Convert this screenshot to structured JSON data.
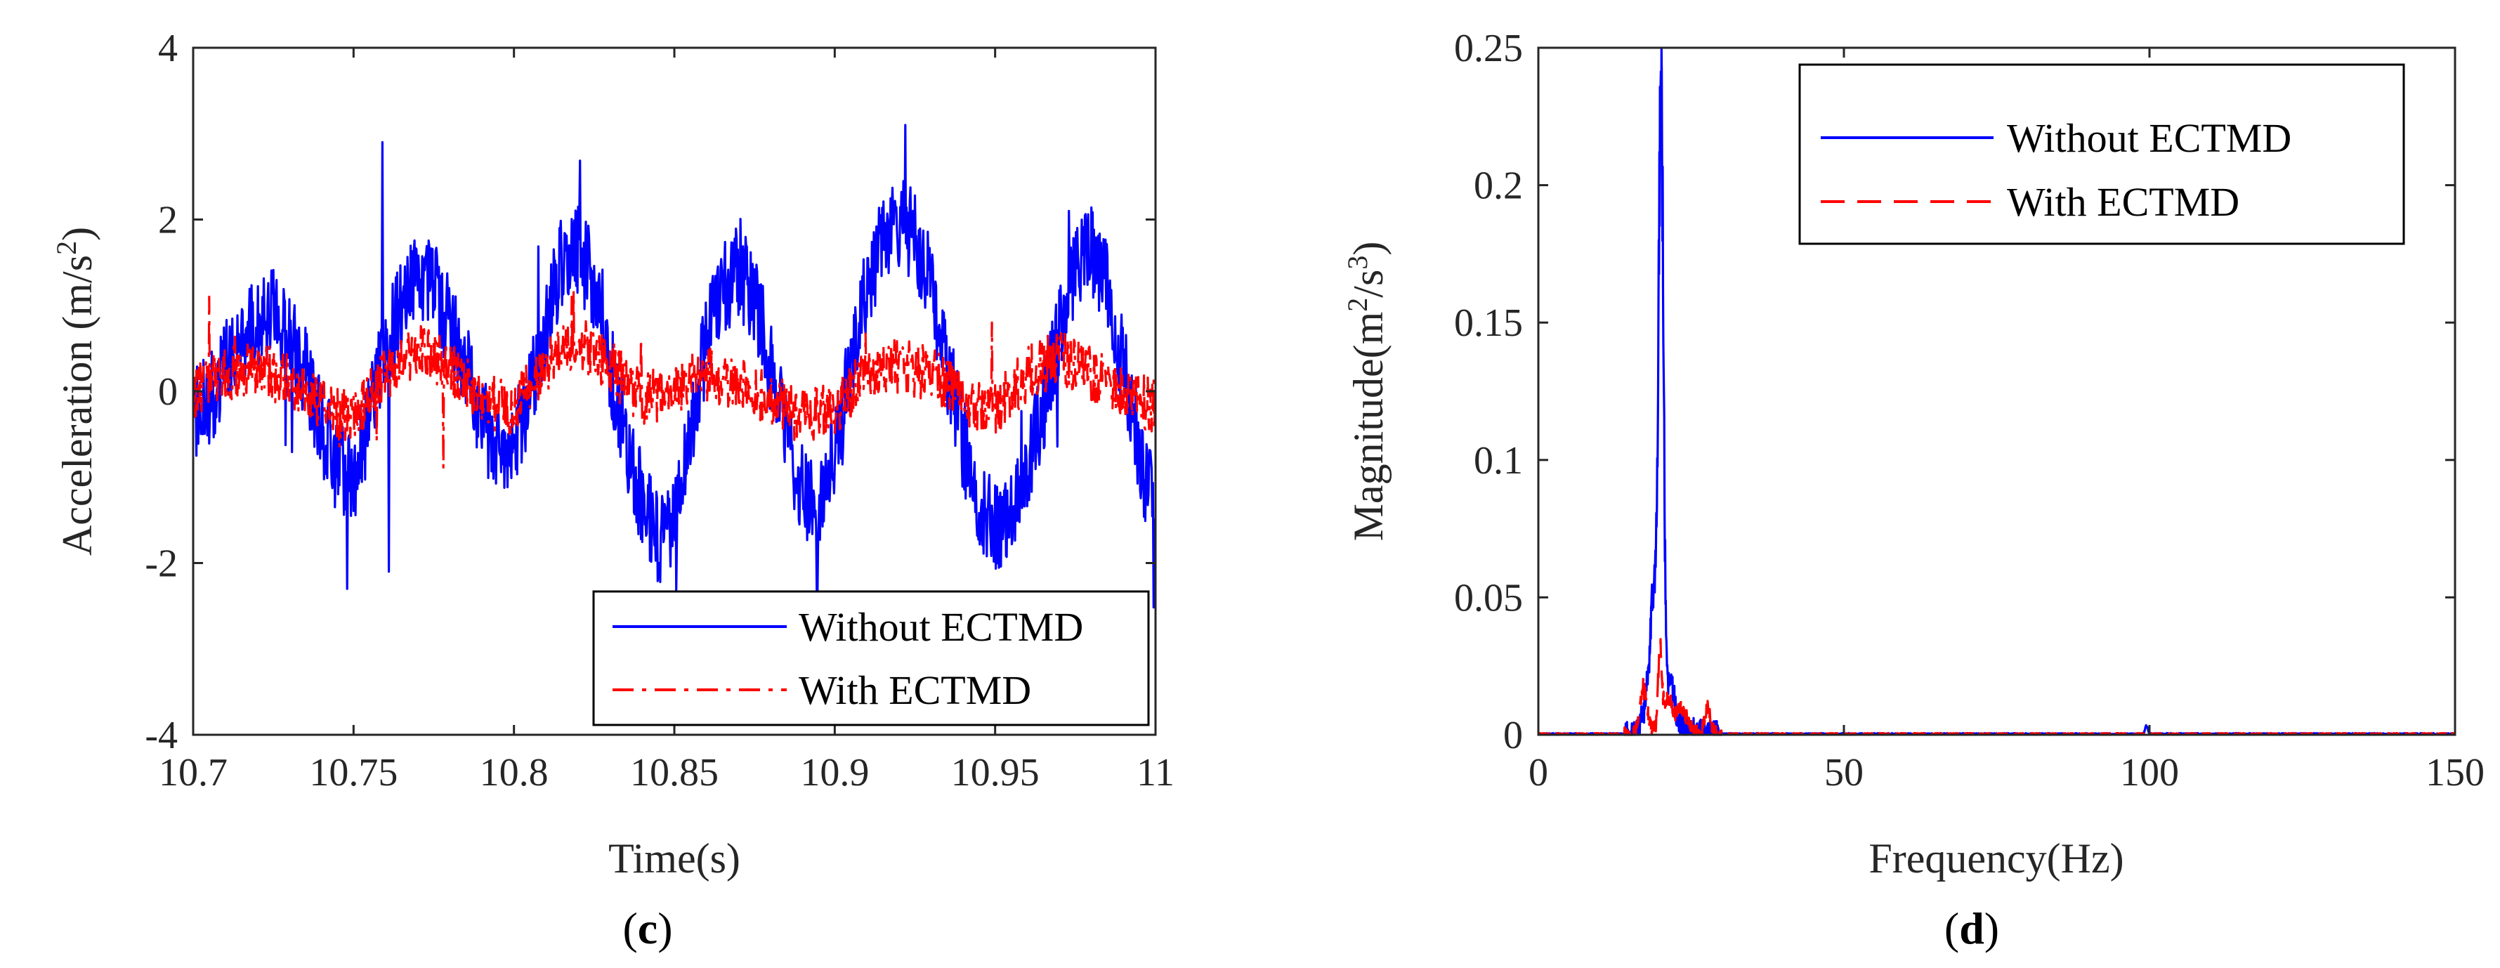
{
  "chart_data": [
    {
      "type": "line",
      "panel_label": "(c)",
      "panel_letter": "c",
      "xlabel": "Time(s)",
      "ylabel_base": "Acceleration (m/s",
      "ylabel_sup": "2",
      "ylabel_tail": ")",
      "xlim": [
        10.7,
        11
      ],
      "ylim": [
        -4,
        4
      ],
      "xticks": [
        10.7,
        10.75,
        10.8,
        10.85,
        10.9,
        10.95,
        11
      ],
      "xtick_labels": [
        "10.7",
        "10.75",
        "10.8",
        "10.85",
        "10.9",
        "10.95",
        "11"
      ],
      "yticks": [
        -4,
        -2,
        0,
        2,
        4
      ],
      "ytick_labels": [
        "-4",
        "-2",
        "0",
        "2",
        "4"
      ],
      "legend_position": "bottom-right",
      "series": [
        {
          "name": "Without ECTMD",
          "color": "#0000ff",
          "style": "solid",
          "shape": {
            "x": [
              10.7,
              10.705,
              10.71,
              10.715,
              10.72,
              10.725,
              10.73,
              10.735,
              10.74,
              10.745,
              10.75,
              10.755,
              10.76,
              10.765,
              10.77,
              10.775,
              10.78,
              10.785,
              10.79,
              10.795,
              10.8,
              10.805,
              10.81,
              10.815,
              10.82,
              10.825,
              10.83,
              10.835,
              10.84,
              10.845,
              10.85,
              10.855,
              10.86,
              10.865,
              10.87,
              10.875,
              10.88,
              10.885,
              10.89,
              10.895,
              10.9,
              10.905,
              10.91,
              10.915,
              10.92,
              10.925,
              10.93,
              10.935,
              10.94,
              10.945,
              10.95,
              10.955,
              10.96,
              10.965,
              10.97,
              10.975,
              10.98,
              10.985,
              10.99,
              10.995,
              11
            ],
            "y": [
              -0.3,
              -0.1,
              0.3,
              0.6,
              0.8,
              0.9,
              0.6,
              0.2,
              -0.4,
              -0.9,
              -1.0,
              -0.3,
              0.5,
              1.0,
              1.3,
              1.2,
              0.8,
              0.3,
              -0.3,
              -0.7,
              -0.6,
              0.0,
              0.8,
              1.5,
              1.7,
              1.2,
              0.3,
              -0.6,
              -1.3,
              -1.7,
              -1.5,
              -0.5,
              0.6,
              1.2,
              1.4,
              1.1,
              0.3,
              -0.5,
              -1.2,
              -1.3,
              -0.7,
              0.4,
              1.2,
              1.8,
              2.0,
              1.8,
              1.2,
              0.3,
              -0.6,
              -1.3,
              -1.6,
              -1.4,
              -0.9,
              -0.2,
              0.7,
              1.4,
              1.6,
              1.2,
              0.3,
              -0.7,
              -1.5
            ],
            "noise": 0.55,
            "spike_prob": 0.012,
            "spike_amp": 1.3,
            "spikes": [
              [
                10.759,
                2.9
              ],
              [
                10.748,
                -2.3
              ],
              [
                10.761,
                -2.1
              ],
              [
                10.922,
                3.1
              ],
              [
                10.8945,
                -2.4
              ],
              [
                10.845,
                -2.1
              ],
              [
                10.973,
                2.1
              ]
            ]
          }
        },
        {
          "name": "With ECTMD",
          "color": "#ff0000",
          "style": "dashdot",
          "shape": {
            "x": [
              10.7,
              10.71,
              10.72,
              10.73,
              10.74,
              10.75,
              10.76,
              10.77,
              10.78,
              10.79,
              10.8,
              10.81,
              10.82,
              10.83,
              10.84,
              10.85,
              10.86,
              10.87,
              10.88,
              10.89,
              10.9,
              10.91,
              10.92,
              10.93,
              10.94,
              10.95,
              10.96,
              10.97,
              10.98,
              10.99,
              11
            ],
            "y": [
              0.0,
              0.2,
              0.3,
              0.1,
              -0.2,
              -0.3,
              0.2,
              0.5,
              0.3,
              -0.1,
              -0.2,
              0.3,
              0.6,
              0.3,
              -0.1,
              0.0,
              0.2,
              0.1,
              -0.1,
              -0.3,
              -0.2,
              0.2,
              0.3,
              0.2,
              -0.1,
              -0.2,
              0.2,
              0.4,
              0.2,
              0.0,
              -0.2
            ],
            "noise": 0.32,
            "spike_prob": 0.008,
            "spike_amp": 0.6,
            "spikes": [
              [
                10.705,
                1.1
              ],
              [
                10.818,
                1.1
              ],
              [
                10.778,
                -0.9
              ],
              [
                10.949,
                0.8
              ]
            ]
          }
        }
      ]
    },
    {
      "type": "line",
      "panel_label": "(d)",
      "panel_letter": "d",
      "xlabel": "Frequency(Hz)",
      "ylabel_base": "Magnitude(m",
      "ylabel_sup1": "2",
      "ylabel_mid": "/s",
      "ylabel_sup2": "3",
      "ylabel_tail": ")",
      "xlim": [
        0,
        150
      ],
      "ylim": [
        0,
        0.25
      ],
      "xticks": [
        0,
        50,
        100,
        150
      ],
      "xtick_labels": [
        "0",
        "50",
        "100",
        "150"
      ],
      "yticks": [
        0,
        0.05,
        0.1,
        0.15,
        0.2,
        0.25
      ],
      "ytick_labels": [
        "0",
        "0.05",
        "0.1",
        "0.15",
        "0.2",
        "0.25"
      ],
      "legend_position": "top-right",
      "series": [
        {
          "name": "Without ECTMD",
          "color": "#0000ff",
          "style": "solid",
          "peaks": [
            {
              "f": 20.1,
              "a": 0.218,
              "w": 0.55
            },
            {
              "f": 19.1,
              "a": 0.05,
              "w": 0.9
            },
            {
              "f": 18.0,
              "a": 0.012,
              "w": 1.2
            },
            {
              "f": 21.6,
              "a": 0.02,
              "w": 0.8
            },
            {
              "f": 23.5,
              "a": 0.004,
              "w": 1.5
            },
            {
              "f": 99.5,
              "a": 0.003,
              "w": 0.3
            }
          ],
          "noise": 0.0006
        },
        {
          "name": "With ECTMD",
          "color": "#ff0000",
          "style": "dashed",
          "peaks": [
            {
              "f": 17.2,
              "a": 0.017,
              "w": 0.8
            },
            {
              "f": 19.9,
              "a": 0.024,
              "w": 0.4
            },
            {
              "f": 21.0,
              "a": 0.012,
              "w": 1.4
            },
            {
              "f": 23.5,
              "a": 0.008,
              "w": 1.2
            },
            {
              "f": 27.7,
              "a": 0.009,
              "w": 0.7
            }
          ],
          "noise": 0.0006
        }
      ]
    }
  ]
}
